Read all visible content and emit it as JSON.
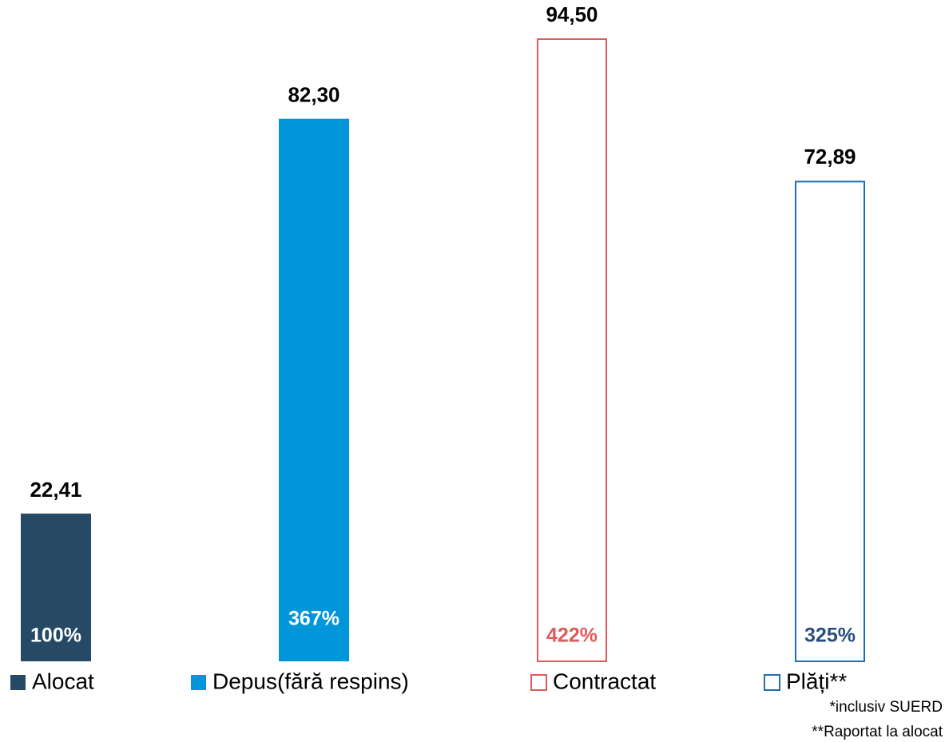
{
  "chart_data": {
    "type": "bar",
    "categories": [
      "Alocat",
      "Depus(fără respins)",
      "Contractat",
      "Plăți**"
    ],
    "values": [
      22.41,
      82.3,
      94.5,
      72.89
    ],
    "value_labels": [
      "22,41",
      "82,30",
      "94,50",
      "72,89"
    ],
    "percent_labels": [
      "100%",
      "367%",
      "422%",
      "325%"
    ],
    "colors": [
      "#264a66",
      "#0096d9",
      "#e05a5a",
      "#1f6db3"
    ],
    "percent_label_colors": [
      "#ffffff",
      "#ffffff",
      "#e05a5a",
      "#2a4d80"
    ],
    "styles": [
      "filled",
      "filled",
      "outline",
      "outline"
    ],
    "ylim": [
      0,
      94.5
    ],
    "legend": "bottom",
    "footnotes": [
      "*inclusiv SUERD",
      "**Raportat la alocat"
    ]
  }
}
